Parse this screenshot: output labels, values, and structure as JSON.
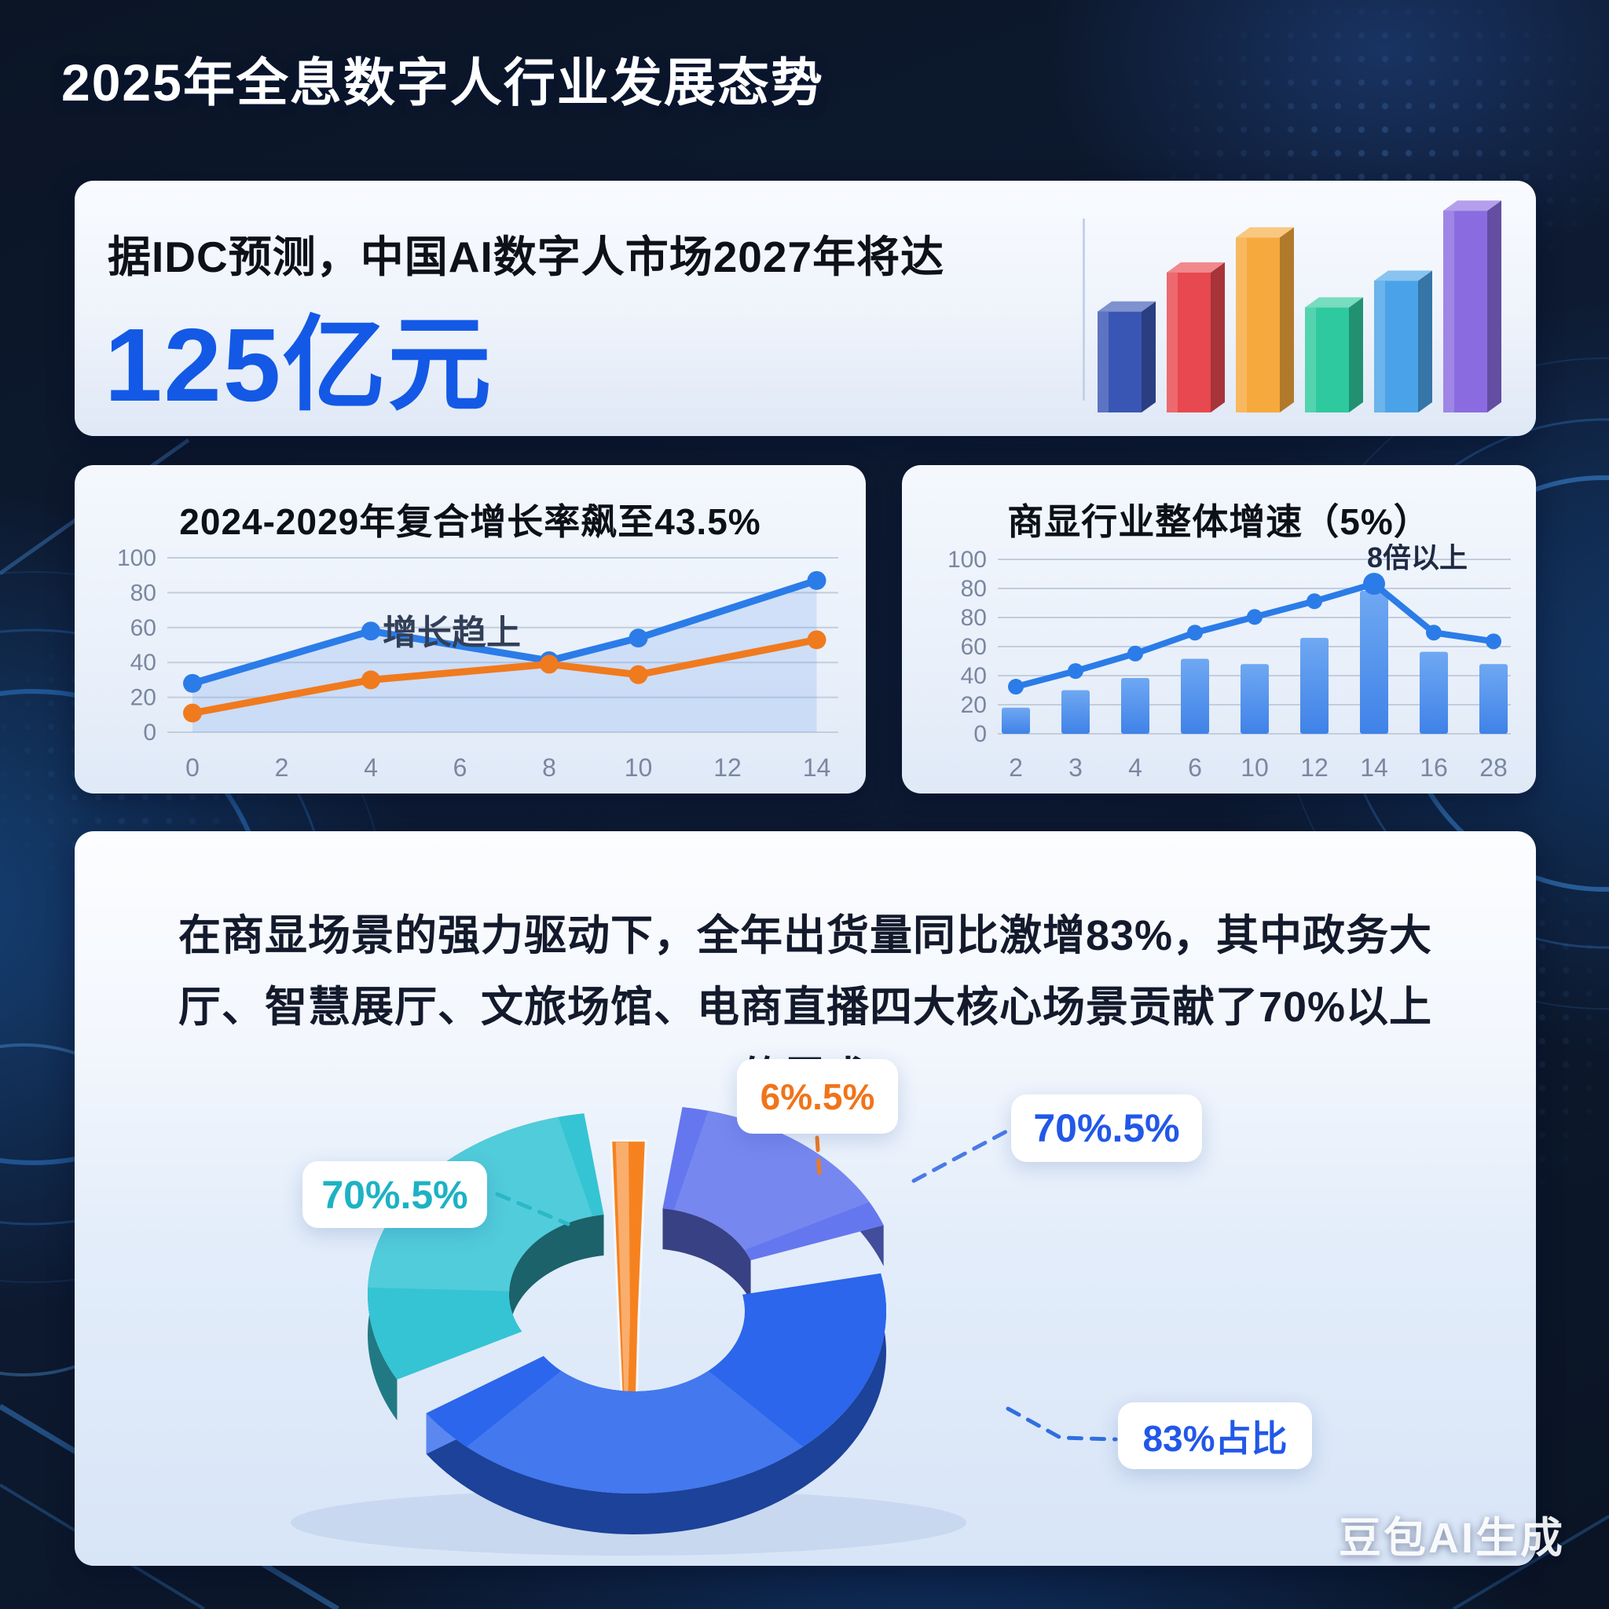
{
  "page": {
    "title": "2025年全息数字人行业发展态势",
    "watermark": "豆包AI生成"
  },
  "idc_card": {
    "text": "据IDC预测，中国AI数字人市场2027年将达",
    "highlight": "125亿元"
  },
  "scene_card": {
    "paragraph": "在商显场景的强力驱动下，全年出货量同比激增83%，其中政务大厅、智慧展厅、文旅场馆、电商直播四大核心场景贡献了70%以上的需求"
  },
  "chart_data": [
    {
      "id": "idc_bars",
      "type": "bar",
      "title": "",
      "note": "decorative 3d bar icon, no axes",
      "values": [
        49,
        68,
        85,
        51,
        64,
        98
      ],
      "colors": [
        "#3a56b4",
        "#e8484f",
        "#f6a93c",
        "#2ec99e",
        "#4aa3e8",
        "#8a6ce0"
      ],
      "ylim": [
        0,
        100
      ]
    },
    {
      "id": "cagr",
      "type": "line",
      "title": "2024-2029年复合增长率飙至43.5%",
      "annotation": "增长趋上",
      "x_ticks": [
        0,
        2,
        4,
        6,
        8,
        10,
        12,
        14
      ],
      "y_ticks": [
        100,
        80,
        60,
        40,
        20,
        0
      ],
      "ylim": [
        0,
        100
      ],
      "grid": true,
      "series": [
        {
          "name": "blue-line",
          "color": "#2b7ce8",
          "x": [
            0,
            4,
            8,
            10,
            14
          ],
          "values": [
            28,
            58,
            41,
            54,
            87
          ],
          "area_fill": true
        },
        {
          "name": "orange-line",
          "color": "#f07a1e",
          "x": [
            0,
            4,
            8,
            10,
            14
          ],
          "values": [
            11,
            30,
            39,
            33,
            53
          ],
          "area_fill": false
        }
      ]
    },
    {
      "id": "industry",
      "type": "bar+line",
      "title": "商显行业整体增速（5%）",
      "annotation": "8倍以上",
      "annotation_at_x": "14",
      "categories": [
        "2",
        "3",
        "4",
        "6",
        "10",
        "12",
        "14",
        "16",
        "28"
      ],
      "bars": [
        15,
        25,
        32,
        43,
        40,
        55,
        82,
        47,
        40
      ],
      "line": [
        27,
        36,
        46,
        58,
        67,
        76,
        86,
        58,
        53
      ],
      "y_tick_labels": [
        "100",
        "80",
        "80",
        "60",
        "40",
        "20",
        "0"
      ],
      "ylim": [
        0,
        100
      ],
      "grid": true,
      "bar_color": "#3f82e8",
      "bar_color_light": "#6fa8f2",
      "line_color": "#2b7ce8"
    },
    {
      "id": "donut",
      "type": "donut",
      "title": "",
      "segments": [
        {
          "name": "teal-segment",
          "label": "70%.5%",
          "color": "#35c4d4",
          "angle_start": 98,
          "angle_end": 208
        },
        {
          "name": "orange-segment",
          "label": "6%.5%",
          "color": "#f6821f",
          "angle_start": 86,
          "angle_end": 94
        },
        {
          "name": "periwinkle-segment",
          "label": "70%.5%",
          "color": "#6577ee",
          "angle_start": 20,
          "angle_end": 82
        },
        {
          "name": "blue-segment",
          "label": "83%占比",
          "color": "#2b66ec",
          "angle_start": 214,
          "angle_end": 372
        }
      ]
    }
  ]
}
